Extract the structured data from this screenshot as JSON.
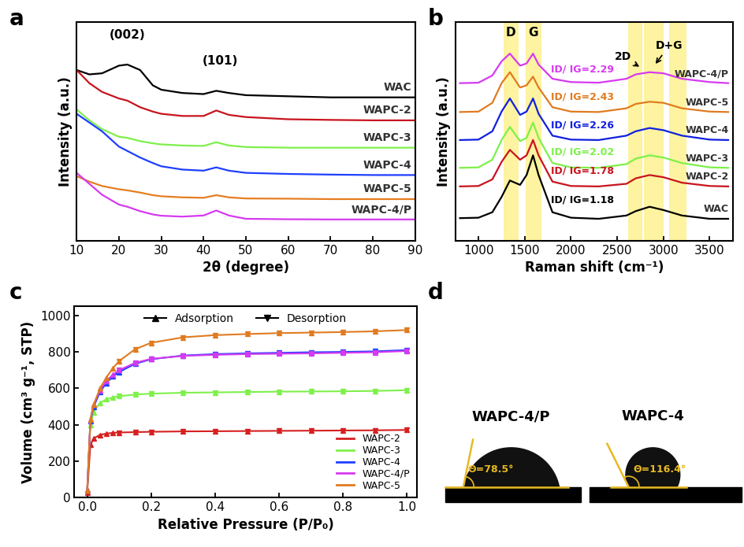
{
  "chart_data": [
    {
      "panel": "a",
      "type": "line",
      "x_label": "2θ (degree)",
      "y_label": "Intensity (a.u.)",
      "x": [
        10,
        13,
        16,
        20,
        22,
        25,
        28,
        30,
        35,
        40,
        43,
        46,
        50,
        60,
        70,
        80,
        90
      ],
      "series": [
        {
          "name": "WAC",
          "color": "#000000",
          "values": [
            78,
            76,
            76.5,
            80,
            80.5,
            78,
            71,
            69,
            67.5,
            67,
            68.5,
            67.5,
            66.5,
            66,
            65.5,
            65.5,
            65.5
          ]
        },
        {
          "name": "WAPC-2",
          "color": "#c8141e",
          "values": [
            78,
            72,
            68,
            65,
            64,
            61,
            59,
            58,
            57,
            57,
            59.5,
            57.5,
            56.5,
            55.5,
            55.2,
            55,
            55
          ]
        },
        {
          "name": "WAPC-3",
          "color": "#7ef04a",
          "values": [
            60,
            55,
            51,
            47.5,
            47,
            45.5,
            44.5,
            44,
            43.5,
            43.3,
            45,
            43.5,
            42.8,
            42.5,
            42.5,
            42.5,
            42.5
          ]
        },
        {
          "name": "WAPC-4",
          "color": "#1f3fff",
          "values": [
            58,
            54,
            50,
            43,
            41,
            38,
            35.5,
            34,
            32.5,
            32,
            33.5,
            32,
            31,
            30.5,
            30.2,
            30,
            30
          ]
        },
        {
          "name": "WAPC-5",
          "color": "#e67e22",
          "values": [
            29.5,
            27,
            25,
            23.5,
            23,
            22,
            20.8,
            20.3,
            19.8,
            19.6,
            20.8,
            19.8,
            19.3,
            19.2,
            19,
            19,
            19
          ]
        },
        {
          "name": "WAPC-4/P",
          "color": "#d63af0",
          "values": [
            31,
            26,
            21,
            16.5,
            15.5,
            13.5,
            12,
            11.4,
            11,
            11.5,
            13.8,
            11.5,
            10,
            9.8,
            9.7,
            9.7,
            9.7
          ]
        }
      ],
      "xlim": [
        10,
        90
      ],
      "xticks": [
        10,
        20,
        30,
        40,
        50,
        60,
        70,
        80,
        90
      ],
      "ylim": [
        0,
        100
      ],
      "tick_labels": "x",
      "annotations": [
        {
          "text": "(002)",
          "x": 22,
          "y": 94
        },
        {
          "text": "(101)",
          "x": 44,
          "y": 82
        }
      ]
    },
    {
      "panel": "b",
      "type": "line",
      "x_label": "Raman shift (cm⁻¹)",
      "y_label": "Intensity (a.u.)",
      "x": [
        800,
        1000,
        1150,
        1250,
        1340,
        1450,
        1520,
        1590,
        1650,
        1800,
        2000,
        2300,
        2600,
        2700,
        2850,
        3000,
        3200,
        3500,
        3700
      ],
      "series": [
        {
          "name": "WAC",
          "color": "#000000",
          "ratio": 1.18,
          "ratio_label": "ID/ IG=1.18",
          "values": [
            10.3,
            10.5,
            13,
            20,
            27.5,
            25.5,
            30,
            39,
            30,
            13,
            10.5,
            10,
            11.5,
            13.5,
            15.5,
            14,
            11.5,
            10,
            10
          ]
        },
        {
          "name": "WAPC-2",
          "color": "#c8141e",
          "ratio": 1.78,
          "ratio_label": "ID/ IG=1.78",
          "values": [
            24.8,
            25,
            28,
            36,
            41.5,
            37,
            39,
            46,
            39,
            27,
            25,
            24.8,
            26,
            28.5,
            30,
            29,
            26.5,
            25,
            24.8
          ]
        },
        {
          "name": "WAPC-3",
          "color": "#7ef04a",
          "ratio": 2.02,
          "ratio_label": "ID/ IG=2.02",
          "values": [
            33.3,
            33.5,
            37,
            46,
            52,
            45.5,
            47,
            54,
            47,
            35.5,
            33.5,
            33.3,
            35,
            37.5,
            39,
            38,
            35.5,
            33.5,
            33.3
          ]
        },
        {
          "name": "WAPC-4",
          "color": "#1020e0",
          "ratio": 2.26,
          "ratio_label": "ID/ IG=2.26",
          "values": [
            46,
            46.2,
            50,
            59,
            65,
            57.5,
            59,
            65,
            58,
            48,
            46.2,
            46,
            48,
            50,
            51.5,
            50.5,
            48,
            46.2,
            46
          ]
        },
        {
          "name": "WAPC-5",
          "color": "#e07b20",
          "ratio": 2.43,
          "ratio_label": "ID/ IG=2.43",
          "values": [
            58.8,
            59,
            63,
            72,
            77,
            70,
            71,
            75,
            70,
            61,
            59,
            58.8,
            60.5,
            62.5,
            63.5,
            63,
            60.5,
            59,
            58.8
          ]
        },
        {
          "name": "WAPC-4/P",
          "color": "#d63af0",
          "ratio": 2.29,
          "ratio_label": "ID/ IG=2.29",
          "values": [
            72,
            72.2,
            75.5,
            82,
            85.5,
            80,
            81,
            85.5,
            80.5,
            74,
            72.5,
            72.2,
            74,
            76,
            77,
            76.5,
            74,
            72.5,
            72
          ]
        }
      ],
      "bands": [
        [
          1270,
          1430
        ],
        [
          1510,
          1680
        ],
        [
          2620,
          2770
        ],
        [
          2790,
          3000
        ],
        [
          3060,
          3250
        ]
      ],
      "xlim": [
        750,
        3750
      ],
      "xticks": [
        1000,
        1500,
        2000,
        2500,
        3000,
        3500
      ],
      "ylim": [
        0,
        100
      ],
      "tick_labels": "x",
      "annotations": [
        {
          "text": "D",
          "x": 1350,
          "y": 95
        },
        {
          "text": "G",
          "x": 1595,
          "y": 95
        },
        {
          "text": "2D",
          "x": 2560,
          "y": 84,
          "arrow_x": 2760,
          "arrow_y": 79
        },
        {
          "text": "D+G",
          "x": 3060,
          "y": 89,
          "arrow_x": 2900,
          "arrow_y": 80
        }
      ]
    },
    {
      "panel": "c",
      "type": "line",
      "x_label": "Relative Pressure (P/P₀)",
      "y_label": "Volume (cm³ g⁻¹, STP)",
      "x": [
        0.0,
        0.01,
        0.02,
        0.04,
        0.06,
        0.08,
        0.1,
        0.15,
        0.2,
        0.3,
        0.4,
        0.5,
        0.6,
        0.7,
        0.8,
        0.9,
        1.0
      ],
      "branches": [
        {
          "name": "Adsorption",
          "marker": "triangle_up"
        },
        {
          "name": "Desorption",
          "marker": "triangle_down"
        }
      ],
      "series": [
        {
          "name": "WAPC-2",
          "color": "#d62020",
          "values": [
            30,
            290,
            325,
            345,
            352,
            356,
            358,
            360,
            362,
            364,
            365,
            366,
            367,
            368,
            369,
            370,
            372
          ],
          "desorption": [
            null,
            null,
            null,
            null,
            null,
            null,
            358,
            360,
            362,
            364,
            365,
            366,
            367,
            368,
            369,
            370,
            372
          ]
        },
        {
          "name": "WAPC-3",
          "color": "#7ef04a",
          "values": [
            40,
            400,
            470,
            520,
            540,
            550,
            557,
            566,
            571,
            576,
            578,
            580,
            582,
            583,
            584,
            586,
            590
          ],
          "desorption": [
            null,
            null,
            null,
            null,
            null,
            null,
            557,
            566,
            571,
            576,
            578,
            580,
            582,
            583,
            584,
            586,
            590
          ]
        },
        {
          "name": "WAPC-4",
          "color": "#1f3fff",
          "values": [
            40,
            420,
            500,
            580,
            630,
            665,
            690,
            735,
            760,
            780,
            788,
            792,
            795,
            798,
            800,
            803,
            810
          ],
          "desorption": [
            null,
            null,
            null,
            null,
            null,
            null,
            690,
            735,
            760,
            780,
            788,
            792,
            795,
            798,
            800,
            803,
            810
          ]
        },
        {
          "name": "WAPC-4/P",
          "color": "#d63af0",
          "values": [
            40,
            430,
            510,
            590,
            640,
            675,
            700,
            740,
            762,
            778,
            784,
            788,
            790,
            792,
            795,
            798,
            805
          ],
          "desorption": [
            null,
            null,
            null,
            null,
            null,
            null,
            700,
            740,
            762,
            778,
            784,
            788,
            790,
            792,
            795,
            798,
            805
          ]
        },
        {
          "name": "WAPC-5",
          "color": "#e07b20",
          "values": [
            40,
            430,
            510,
            600,
            660,
            710,
            750,
            815,
            850,
            880,
            892,
            898,
            903,
            906,
            909,
            913,
            920
          ],
          "desorption": [
            null,
            null,
            null,
            null,
            null,
            null,
            750,
            815,
            850,
            880,
            892,
            898,
            903,
            906,
            909,
            913,
            920
          ]
        }
      ],
      "xlim": [
        -0.04,
        1.03
      ],
      "xticks": [
        0.0,
        0.2,
        0.4,
        0.6,
        0.8,
        1.0
      ],
      "ylim": [
        0,
        1050
      ],
      "yticks": [
        0,
        200,
        400,
        600,
        800,
        1000
      ],
      "legend": "lower right"
    }
  ],
  "contact_angle": {
    "panel": "d",
    "droplets": [
      {
        "name": "WAPC-4/P",
        "angle": 78.5,
        "label": "Θ=78.5°"
      },
      {
        "name": "WAPC-4",
        "angle": 116.4,
        "label": "Θ=116.4°"
      }
    ]
  }
}
